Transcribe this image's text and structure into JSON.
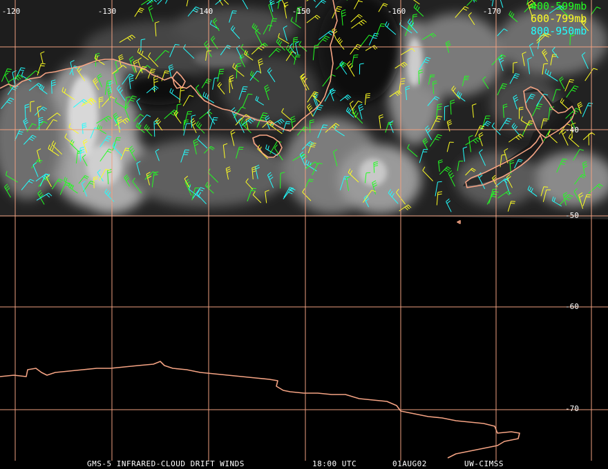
{
  "map": {
    "grid_color": "#f0a080",
    "coast_color": "#f6a484",
    "lon_labels": [
      "-120",
      "-130",
      "-140",
      "-150",
      "-160",
      "-170"
    ],
    "lat_labels": [
      "-40",
      "-50",
      "-60",
      "-70"
    ]
  },
  "legend": [
    {
      "label": "400-599mb",
      "color": "#22ff22"
    },
    {
      "label": "600-799mb",
      "color": "#ffff22"
    },
    {
      "label": "800-950mb",
      "color": "#22ffff"
    }
  ],
  "footer": {
    "product": "GMS-5 INFRARED-CLOUD DRIFT WINDS",
    "time": "18:00 UTC",
    "date": "01AUG02",
    "source": "UW-CIMSS"
  }
}
